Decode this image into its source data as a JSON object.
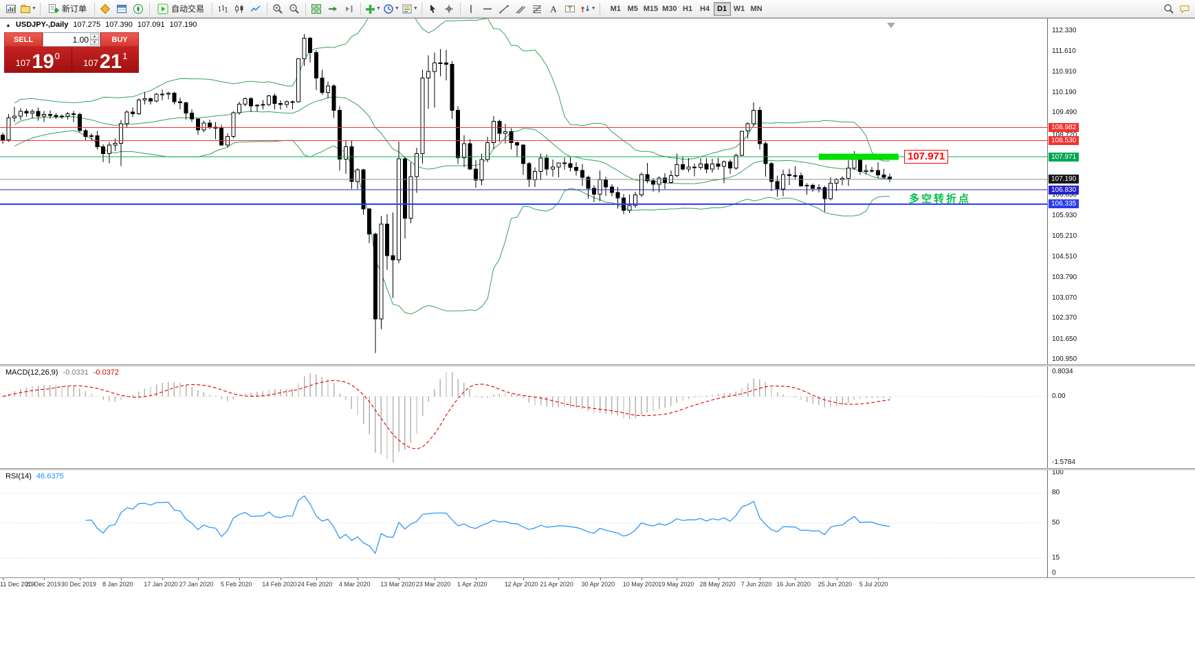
{
  "toolbar": {
    "new_order_label": "新订单",
    "autotrade_label": "自动交易",
    "timeframes": [
      "M1",
      "M5",
      "M15",
      "M30",
      "H1",
      "H4",
      "D1",
      "W1",
      "MN"
    ],
    "active_timeframe": "D1",
    "icon_names": [
      "new-chart",
      "profiles",
      "new-order",
      "market-watch",
      "data-window",
      "navigator",
      "autotrading",
      "bar-chart",
      "candlestick-chart",
      "line-chart",
      "zoom-in",
      "zoom-out",
      "tile-windows",
      "auto-scroll",
      "chart-shift",
      "indicators",
      "periods",
      "templates",
      "cursor",
      "crosshair",
      "vertical-line",
      "horizontal-line",
      "trendline",
      "channel",
      "fibonacci",
      "text",
      "text-label",
      "arrows",
      "search",
      "chat"
    ]
  },
  "colors": {
    "bull": "#ffffff",
    "bear": "#000000",
    "outline": "#000000",
    "bollinger": "#35a05a",
    "macd_hist": "#b2b2b2",
    "macd_signal": "#e00000",
    "rsi_line": "#1e90ff",
    "grid_dots": "#c8c8c8",
    "highlight": "#00dd00",
    "shift_marker": "#a8a8a8"
  },
  "chart": {
    "symbol_label": "USDJPY-,Daily",
    "ohlc": {
      "open": "107.275",
      "high": "107.390",
      "low": "107.091",
      "close": "107.190"
    },
    "one_click": {
      "sell_label": "SELL",
      "buy_label": "BUY",
      "volume": "1.00",
      "sell_price_prefix": "107",
      "sell_price_big": "19",
      "sell_price_sup": "0",
      "buy_price_prefix": "107",
      "buy_price_big": "21",
      "buy_price_sup": "1"
    },
    "annotation": {
      "box_label": "107.971",
      "cn_note": "多空转折点"
    },
    "levels": [
      {
        "label": "108.982",
        "price": 108.982,
        "line_color": "#ff2e2e",
        "line_width": 1,
        "badge": "#f23131"
      },
      {
        "label": "108.530",
        "price": 108.53,
        "line_color": "#ff2e2e",
        "line_width": 1,
        "badge": "#f23131"
      },
      {
        "label": "107.971",
        "price": 107.971,
        "line_color": "#00b050",
        "line_width": 1,
        "badge": "#00a651"
      },
      {
        "label": "107.190",
        "price": 107.19,
        "line_color": "#8b8b8b",
        "line_width": 1,
        "badge": "#161616"
      },
      {
        "label": "106.830",
        "price": 106.83,
        "line_color": "#2222bb",
        "line_width": 1,
        "badge": "#2323cc"
      },
      {
        "label": "106.335",
        "price": 106.335,
        "line_color": "#2a3bff",
        "line_width": 2,
        "badge": "#2a3bee"
      }
    ],
    "scale_ticks": [
      {
        "label": "112.330",
        "price": 112.33
      },
      {
        "label": "111.610",
        "price": 111.61
      },
      {
        "label": "110.910",
        "price": 110.91
      },
      {
        "label": "110.190",
        "price": 110.19
      },
      {
        "label": "109.490",
        "price": 109.49
      },
      {
        "label": "108.720",
        "price": 108.72
      },
      {
        "label": "106.630",
        "price": 106.63
      },
      {
        "label": "105.930",
        "price": 105.93
      },
      {
        "label": "105.210",
        "price": 105.21
      },
      {
        "label": "104.510",
        "price": 104.51
      },
      {
        "label": "103.790",
        "price": 103.79
      },
      {
        "label": "103.070",
        "price": 103.07
      },
      {
        "label": "102.370",
        "price": 102.37
      },
      {
        "label": "101.650",
        "price": 101.65
      },
      {
        "label": "100.950",
        "price": 100.95
      }
    ],
    "highlight_rect": {
      "price": 107.971,
      "from_index": 138,
      "to_index": 151.5,
      "color": "#00dd00"
    },
    "candles": [
      [
        108.72,
        108.8,
        108.42,
        108.56
      ],
      [
        108.56,
        109.45,
        108.48,
        109.32
      ],
      [
        109.32,
        109.7,
        109.18,
        109.38
      ],
      [
        109.38,
        109.65,
        109.25,
        109.55
      ],
      [
        109.55,
        109.63,
        109.36,
        109.48
      ],
      [
        109.48,
        109.62,
        109.3,
        109.55
      ],
      [
        109.55,
        109.68,
        109.22,
        109.38
      ],
      [
        109.38,
        109.56,
        109.18,
        109.44
      ],
      [
        109.44,
        109.58,
        109.3,
        109.4
      ],
      [
        109.4,
        109.48,
        109.28,
        109.37
      ],
      [
        109.37,
        109.44,
        109.28,
        109.38
      ],
      [
        109.38,
        109.52,
        109.26,
        109.46
      ],
      [
        109.46,
        109.56,
        109.18,
        109.44
      ],
      [
        109.44,
        109.5,
        108.82,
        108.88
      ],
      [
        108.88,
        108.94,
        108.52,
        108.68
      ],
      [
        108.68,
        108.78,
        108.52,
        108.7
      ],
      [
        108.7,
        108.87,
        108.22,
        108.32
      ],
      [
        108.32,
        108.4,
        107.78,
        108.08
      ],
      [
        108.08,
        108.48,
        107.75,
        108.38
      ],
      [
        108.38,
        108.6,
        108.18,
        108.44
      ],
      [
        108.44,
        109.25,
        107.65,
        109.12
      ],
      [
        109.12,
        109.58,
        109.0,
        109.52
      ],
      [
        109.52,
        109.68,
        109.36,
        109.46
      ],
      [
        109.46,
        110.0,
        109.42,
        109.94
      ],
      [
        109.94,
        110.21,
        109.78,
        109.98
      ],
      [
        109.98,
        110.02,
        109.78,
        109.9
      ],
      [
        109.9,
        110.18,
        109.85,
        110.14
      ],
      [
        110.14,
        110.29,
        109.92,
        110.14
      ],
      [
        110.14,
        110.22,
        109.96,
        110.18
      ],
      [
        110.18,
        110.22,
        109.78,
        109.88
      ],
      [
        109.88,
        110.02,
        109.62,
        109.84
      ],
      [
        109.84,
        109.88,
        109.26,
        109.48
      ],
      [
        109.48,
        109.62,
        109.18,
        109.28
      ],
      [
        109.28,
        109.3,
        108.73,
        108.9
      ],
      [
        108.9,
        109.22,
        108.82,
        109.14
      ],
      [
        109.14,
        109.26,
        108.92,
        109.0
      ],
      [
        109.0,
        109.18,
        108.58,
        108.96
      ],
      [
        108.96,
        109.08,
        108.35,
        108.38
      ],
      [
        108.38,
        108.78,
        108.3,
        108.68
      ],
      [
        108.68,
        109.54,
        108.62,
        109.5
      ],
      [
        109.5,
        109.88,
        109.42,
        109.8
      ],
      [
        109.8,
        110.02,
        109.72,
        109.98
      ],
      [
        109.98,
        110.04,
        109.52,
        109.74
      ],
      [
        109.74,
        109.8,
        109.54,
        109.76
      ],
      [
        109.76,
        109.94,
        109.62,
        109.78
      ],
      [
        109.78,
        110.12,
        109.72,
        110.08
      ],
      [
        110.08,
        110.16,
        109.62,
        109.82
      ],
      [
        109.82,
        109.92,
        109.6,
        109.78
      ],
      [
        109.78,
        109.92,
        109.66,
        109.88
      ],
      [
        109.88,
        109.92,
        109.62,
        109.88
      ],
      [
        109.88,
        111.38,
        109.84,
        111.36
      ],
      [
        111.36,
        112.22,
        111.12,
        112.08
      ],
      [
        112.08,
        112.12,
        111.24,
        111.58
      ],
      [
        111.58,
        111.66,
        110.28,
        110.7
      ],
      [
        110.7,
        110.98,
        110.12,
        110.2
      ],
      [
        110.2,
        110.58,
        110.0,
        110.42
      ],
      [
        110.42,
        110.48,
        109.32,
        109.58
      ],
      [
        109.58,
        109.72,
        107.5,
        107.89
      ],
      [
        107.89,
        108.56,
        107.38,
        108.32
      ],
      [
        108.32,
        108.52,
        106.85,
        107.12
      ],
      [
        107.12,
        107.58,
        106.86,
        107.52
      ],
      [
        107.52,
        107.56,
        105.96,
        106.16
      ],
      [
        106.16,
        106.2,
        104.98,
        105.3
      ],
      [
        105.3,
        105.34,
        101.18,
        102.36
      ],
      [
        102.36,
        105.92,
        102.0,
        105.64
      ],
      [
        105.64,
        105.98,
        104.06,
        104.54
      ],
      [
        104.54,
        106.04,
        103.08,
        104.4
      ],
      [
        104.4,
        108.5,
        104.28,
        107.9
      ],
      [
        107.9,
        107.96,
        105.14,
        105.84
      ],
      [
        105.84,
        107.78,
        105.68,
        107.28
      ],
      [
        107.28,
        108.28,
        106.72,
        108.08
      ],
      [
        108.08,
        110.98,
        107.74,
        110.7
      ],
      [
        110.7,
        111.48,
        109.64,
        110.92
      ],
      [
        110.92,
        111.58,
        109.68,
        111.22
      ],
      [
        111.22,
        111.7,
        110.76,
        111.22
      ],
      [
        111.22,
        111.68,
        110.62,
        111.18
      ],
      [
        111.18,
        111.28,
        109.28,
        109.58
      ],
      [
        109.58,
        109.72,
        107.72,
        107.94
      ],
      [
        107.94,
        108.72,
        107.62,
        108.42
      ],
      [
        108.42,
        108.58,
        107.52,
        107.54
      ],
      [
        107.54,
        107.86,
        106.9,
        107.16
      ],
      [
        107.16,
        108.08,
        106.98,
        107.88
      ],
      [
        107.88,
        108.66,
        107.78,
        108.46
      ],
      [
        108.46,
        109.38,
        108.24,
        109.2
      ],
      [
        109.2,
        109.26,
        108.48,
        108.78
      ],
      [
        108.78,
        109.1,
        108.42,
        108.84
      ],
      [
        108.84,
        108.96,
        108.22,
        108.46
      ],
      [
        108.46,
        108.5,
        107.96,
        108.38
      ],
      [
        108.38,
        108.4,
        107.34,
        107.74
      ],
      [
        107.74,
        107.8,
        106.92,
        107.18
      ],
      [
        107.18,
        107.6,
        106.92,
        107.46
      ],
      [
        107.46,
        108.08,
        107.16,
        107.92
      ],
      [
        107.92,
        108.06,
        107.32,
        107.54
      ],
      [
        107.54,
        107.88,
        107.28,
        107.62
      ],
      [
        107.62,
        107.76,
        107.26,
        107.76
      ],
      [
        107.76,
        107.94,
        107.52,
        107.74
      ],
      [
        107.74,
        107.98,
        107.46,
        107.6
      ],
      [
        107.6,
        107.78,
        107.32,
        107.5
      ],
      [
        107.5,
        107.72,
        106.96,
        107.26
      ],
      [
        107.26,
        107.32,
        106.52,
        106.88
      ],
      [
        106.88,
        106.98,
        106.4,
        106.68
      ],
      [
        106.68,
        107.5,
        106.42,
        107.18
      ],
      [
        107.18,
        107.28,
        106.62,
        106.92
      ],
      [
        106.92,
        107.02,
        106.6,
        106.74
      ],
      [
        106.74,
        106.92,
        106.18,
        106.54
      ],
      [
        106.54,
        106.68,
        105.98,
        106.12
      ],
      [
        106.12,
        106.66,
        106.02,
        106.28
      ],
      [
        106.28,
        106.76,
        106.2,
        106.65
      ],
      [
        106.65,
        107.42,
        106.58,
        107.36
      ],
      [
        107.36,
        107.76,
        107.06,
        107.14
      ],
      [
        107.14,
        107.24,
        106.76,
        107.02
      ],
      [
        107.02,
        107.3,
        106.74,
        107.24
      ],
      [
        107.24,
        107.4,
        106.86,
        107.08
      ],
      [
        107.08,
        107.5,
        107.04,
        107.32
      ],
      [
        107.32,
        108.08,
        107.26,
        107.7
      ],
      [
        107.7,
        107.96,
        107.5,
        107.54
      ],
      [
        107.54,
        107.92,
        107.44,
        107.62
      ],
      [
        107.62,
        107.74,
        107.3,
        107.6
      ],
      [
        107.6,
        107.92,
        107.52,
        107.72
      ],
      [
        107.72,
        107.92,
        107.4,
        107.54
      ],
      [
        107.54,
        107.9,
        107.42,
        107.72
      ],
      [
        107.72,
        107.94,
        107.52,
        107.64
      ],
      [
        107.64,
        107.84,
        107.06,
        107.8
      ],
      [
        107.8,
        107.88,
        107.38,
        107.58
      ],
      [
        107.58,
        108.08,
        107.52,
        108.02
      ],
      [
        108.02,
        108.88,
        108.0,
        108.86
      ],
      [
        108.86,
        109.16,
        108.6,
        109.12
      ],
      [
        109.12,
        109.85,
        109.02,
        109.58
      ],
      [
        109.58,
        109.7,
        108.22,
        108.42
      ],
      [
        108.42,
        108.5,
        107.28,
        107.74
      ],
      [
        107.74,
        107.8,
        106.78,
        107.12
      ],
      [
        107.12,
        107.32,
        106.58,
        106.86
      ],
      [
        106.86,
        107.52,
        106.6,
        107.36
      ],
      [
        107.36,
        107.56,
        106.98,
        107.32
      ],
      [
        107.32,
        107.64,
        107.2,
        107.32
      ],
      [
        107.32,
        107.42,
        106.94,
        106.96
      ],
      [
        106.96,
        107.06,
        106.66,
        106.98
      ],
      [
        106.98,
        107.04,
        106.76,
        106.88
      ],
      [
        106.88,
        107.02,
        106.74,
        106.9
      ],
      [
        106.9,
        106.96,
        106.07,
        106.52
      ],
      [
        106.52,
        107.26,
        106.46,
        107.06
      ],
      [
        107.06,
        107.24,
        106.78,
        107.18
      ],
      [
        107.18,
        107.3,
        106.98,
        107.22
      ],
      [
        107.22,
        107.86,
        106.96,
        107.58
      ],
      [
        107.58,
        108.16,
        107.52,
        107.92
      ],
      [
        107.92,
        107.96,
        107.34,
        107.46
      ],
      [
        107.46,
        107.7,
        107.36,
        107.5
      ],
      [
        107.5,
        107.62,
        107.42,
        107.5
      ],
      [
        107.5,
        107.78,
        107.24,
        107.34
      ],
      [
        107.34,
        107.56,
        107.22,
        107.26
      ],
      [
        107.275,
        107.39,
        107.091,
        107.19
      ]
    ]
  },
  "macd": {
    "title": "MACD(12,26,9)",
    "value_main": "-0.0331",
    "value_signal": "-0.0372",
    "scale_top": "0.8034",
    "scale_zero": "0.00",
    "scale_bottom": "-1.5784"
  },
  "rsi": {
    "title": "RSI(14)",
    "value": "46.6375",
    "scale": [
      {
        "label": "100",
        "value": 100
      },
      {
        "label": "80",
        "value": 80
      },
      {
        "label": "50",
        "value": 50
      },
      {
        "label": "15",
        "value": 15
      },
      {
        "label": "0",
        "value": 0
      }
    ],
    "levels": [
      80,
      50,
      15
    ]
  },
  "time_axis": [
    {
      "label": "11 Dec 2019",
      "index": 0
    },
    {
      "label": "20 Dec 2019",
      "index": 7
    },
    {
      "label": "30 Dec 2019",
      "index": 13
    },
    {
      "label": "8 Jan 2020",
      "index": 20
    },
    {
      "label": "17 Jan 2020",
      "index": 27
    },
    {
      "label": "27 Jan 2020",
      "index": 33
    },
    {
      "label": "5 Feb 2020",
      "index": 40
    },
    {
      "label": "14 Feb 2020",
      "index": 47
    },
    {
      "label": "24 Feb 2020",
      "index": 53
    },
    {
      "label": "4 Mar 2020",
      "index": 60
    },
    {
      "label": "13 Mar 2020",
      "index": 67
    },
    {
      "label": "23 Mar 2020",
      "index": 73
    },
    {
      "label": "1 Apr 2020",
      "index": 80
    },
    {
      "label": "12 Apr 2020",
      "index": 88
    },
    {
      "label": "21 Apr 2020",
      "index": 94
    },
    {
      "label": "30 Apr 2020",
      "index": 101
    },
    {
      "label": "10 May 2020",
      "index": 108
    },
    {
      "label": "19 May 2020",
      "index": 114
    },
    {
      "label": "28 May 2020",
      "index": 121
    },
    {
      "label": "7 Jun 2020",
      "index": 128
    },
    {
      "label": "16 Jun 2020",
      "index": 134
    },
    {
      "label": "25 Jun 2020",
      "index": 141
    },
    {
      "label": "5 Jul 2020",
      "index": 148
    }
  ]
}
